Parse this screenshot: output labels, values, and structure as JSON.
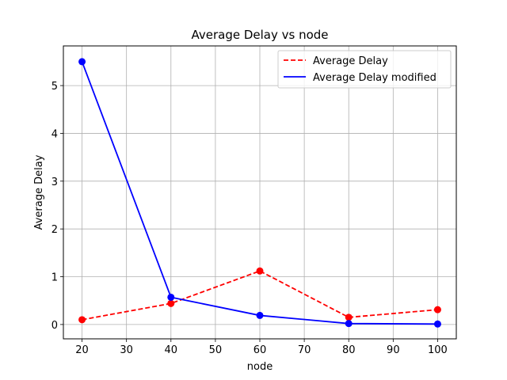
{
  "chart_data": {
    "type": "line",
    "title": "Average Delay vs node",
    "xlabel": "node",
    "ylabel": "Average Delay",
    "x": [
      20,
      40,
      60,
      80,
      100
    ],
    "xlim": [
      15.8,
      104.2
    ],
    "ylim": [
      -0.3,
      5.83
    ],
    "xticks": [
      20,
      30,
      40,
      50,
      60,
      70,
      80,
      90,
      100
    ],
    "yticks": [
      0,
      1,
      2,
      3,
      4,
      5
    ],
    "grid": true,
    "legend_position": "upper-right",
    "series": [
      {
        "name": "Average Delay",
        "values": [
          0.1,
          0.44,
          1.12,
          0.15,
          0.31
        ],
        "color": "#ff0000",
        "line_style": "dashed",
        "markers": true
      },
      {
        "name": "Average Delay modified",
        "values": [
          5.5,
          0.57,
          0.19,
          0.02,
          0.01
        ],
        "color": "#0000ff",
        "line_style": "solid",
        "markers": true
      }
    ]
  }
}
